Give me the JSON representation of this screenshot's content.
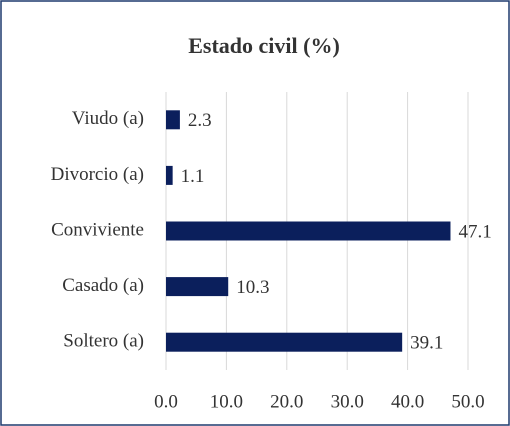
{
  "chart_data": {
    "type": "bar",
    "orientation": "horizontal",
    "title": "Estado civil (%)",
    "categories": [
      "Viudo (a)",
      "Divorcio (a)",
      "Conviviente",
      "Casado (a)",
      "Soltero (a)"
    ],
    "values": [
      2.3,
      1.1,
      47.1,
      10.3,
      39.1
    ],
    "color": "#0b1f5c",
    "xlim": [
      0,
      50
    ],
    "xticks": [
      {
        "value": 0,
        "label": "0.0"
      },
      {
        "value": 10,
        "label": "10.0"
      },
      {
        "value": 20,
        "label": "20.0"
      },
      {
        "value": 30,
        "label": "30.0"
      },
      {
        "value": 40,
        "label": "40.0"
      },
      {
        "value": 50,
        "label": "50.0"
      }
    ],
    "grid": true
  }
}
